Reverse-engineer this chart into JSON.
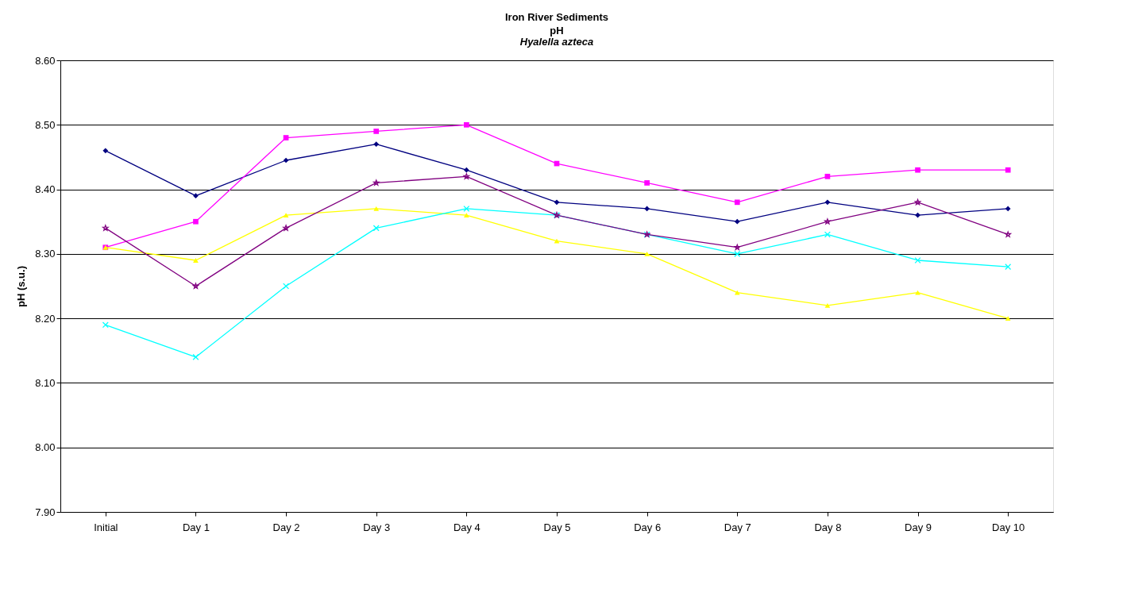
{
  "chart_data": {
    "type": "line",
    "title": "Iron River Sediments",
    "subtitle": "pH",
    "annotations": [
      "Hyalella azteca"
    ],
    "ylabel": "pH (s.u.)",
    "categories": [
      "Initial",
      "Day 1",
      "Day 2",
      "Day 3",
      "Day 4",
      "Day 5",
      "Day 6",
      "Day 7",
      "Day 8",
      "Day 9",
      "Day 10"
    ],
    "series": [
      {
        "color": "#000080",
        "marker": "diamond",
        "values": [
          8.46,
          8.39,
          8.445,
          8.47,
          8.43,
          8.38,
          8.37,
          8.35,
          8.38,
          8.36,
          8.37
        ]
      },
      {
        "color": "#ff00ff",
        "marker": "square",
        "values": [
          8.31,
          8.35,
          8.48,
          8.49,
          8.5,
          8.44,
          8.41,
          8.38,
          8.42,
          8.43,
          8.43
        ]
      },
      {
        "color": "#ffff00",
        "marker": "triangle",
        "values": [
          8.31,
          8.29,
          8.36,
          8.37,
          8.36,
          8.32,
          8.3,
          8.24,
          8.22,
          8.24,
          8.2
        ]
      },
      {
        "color": "#00ffff",
        "marker": "cross",
        "values": [
          8.19,
          8.14,
          8.25,
          8.34,
          8.37,
          8.36,
          8.33,
          8.3,
          8.33,
          8.29,
          8.28
        ]
      },
      {
        "color": "#800080",
        "marker": "star",
        "values": [
          8.34,
          8.25,
          8.34,
          8.41,
          8.42,
          8.36,
          8.33,
          8.31,
          8.35,
          8.38,
          8.33
        ]
      }
    ],
    "ylim": [
      7.9,
      8.6
    ],
    "yticks": [
      {
        "value": 7.9,
        "label": "7.90"
      },
      {
        "value": 8.0,
        "label": "8.00"
      },
      {
        "value": 8.1,
        "label": "8.10"
      },
      {
        "value": 8.2,
        "label": "8.20"
      },
      {
        "value": 8.3,
        "label": "8.30"
      },
      {
        "value": 8.4,
        "label": "8.40"
      },
      {
        "value": 8.5,
        "label": "8.50"
      },
      {
        "value": 8.6,
        "label": "8.60"
      }
    ],
    "grid": "y",
    "legend": false
  }
}
